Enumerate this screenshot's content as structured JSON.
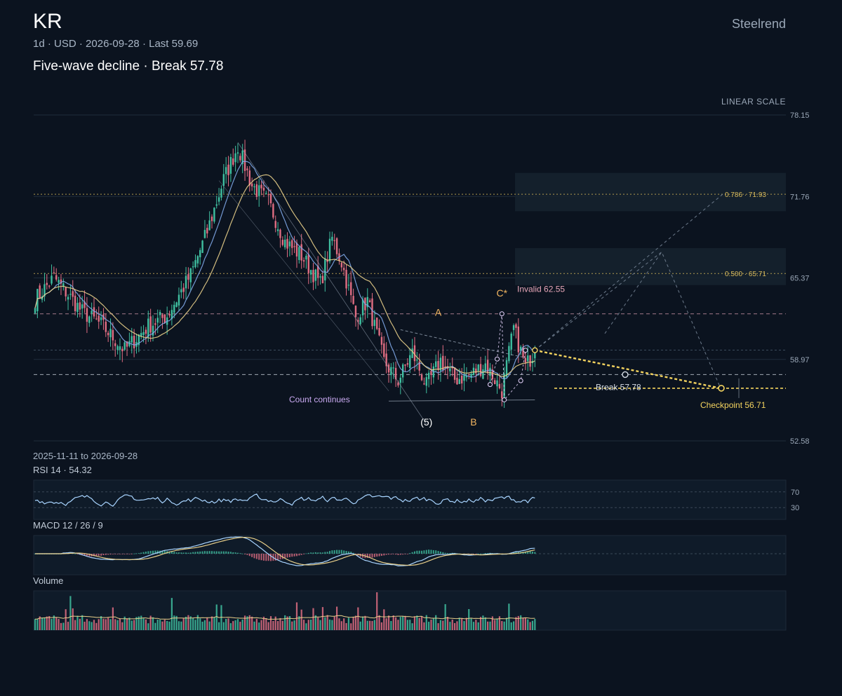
{
  "header": {
    "symbol": "KR",
    "interval": "1d",
    "currency": "USD",
    "date": "2026-09-28",
    "last_label": "Last 59.69",
    "headline": "Five-wave decline · Break 57.78",
    "brand": "Steelrend",
    "scale_label": "LINEAR SCALE",
    "date_range": "2025-11-11 to 2026-09-28"
  },
  "colors": {
    "background": "#0b131f",
    "up": "#3fbfa0",
    "down": "#e06d82",
    "ma_fast": "#7fa8e8",
    "ma_slow": "#e8cf8a",
    "fib": "#d7b95a",
    "invalid": "#e6a6b8",
    "wave_label": "#f2b560",
    "checkpoint": "#f3d35f"
  },
  "panels": {
    "rsi_label": "RSI 14 · 54.32",
    "macd_label": "MACD 12 / 26 / 9",
    "volume_label": "Volume"
  },
  "chart_data": {
    "type": "candlestick",
    "price_axis": {
      "min": 52.58,
      "max": 78.15,
      "ticks": [
        "78.15",
        "71.76",
        "65.37",
        "58.97",
        "52.58"
      ]
    },
    "anchors": [
      {
        "i": 0,
        "price": 63.7
      },
      {
        "i": 8,
        "price": 65.4
      },
      {
        "i": 20,
        "price": 62.7
      },
      {
        "i": 28,
        "price": 61.7
      },
      {
        "i": 38,
        "price": 59.7
      },
      {
        "i": 48,
        "price": 61.6
      },
      {
        "i": 56,
        "price": 62.4
      },
      {
        "i": 66,
        "price": 65.6
      },
      {
        "i": 73,
        "price": 69.0
      },
      {
        "i": 80,
        "price": 73.1
      },
      {
        "i": 86,
        "price": 75.7
      },
      {
        "i": 92,
        "price": 72.6
      },
      {
        "i": 99,
        "price": 71.3
      },
      {
        "i": 106,
        "price": 68.2
      },
      {
        "i": 113,
        "price": 67.1
      },
      {
        "i": 121,
        "price": 64.9
      },
      {
        "i": 126,
        "price": 68.5
      },
      {
        "i": 130,
        "price": 66.6
      },
      {
        "i": 136,
        "price": 62.3
      },
      {
        "i": 141,
        "price": 63.6
      },
      {
        "i": 148,
        "price": 58.8
      },
      {
        "i": 154,
        "price": 57.3
      },
      {
        "i": 160,
        "price": 59.5
      },
      {
        "i": 166,
        "price": 56.9
      },
      {
        "i": 172,
        "price": 58.9
      },
      {
        "i": 178,
        "price": 57.4
      },
      {
        "i": 184,
        "price": 57.7
      },
      {
        "i": 191,
        "price": 58.6
      },
      {
        "i": 198,
        "price": 56.5
      },
      {
        "i": 203,
        "price": 61.4
      },
      {
        "i": 208,
        "price": 58.4
      },
      {
        "i": 212,
        "price": 59.69
      }
    ],
    "levels": {
      "fib_0786": {
        "label": "0.786 · 71.93",
        "price": 71.93
      },
      "fib_0500": {
        "label": "0.500 · 65.71",
        "price": 65.71
      },
      "invalid": {
        "label": "Invalid 62.55",
        "price": 62.55
      },
      "pivot": {
        "price": 59.7
      },
      "break": {
        "label": "Break 57.78",
        "price": 57.78
      },
      "checkpoint": {
        "label": "Checkpoint 56.71",
        "price": 56.71
      }
    },
    "zones": [
      {
        "from": 70.6,
        "to": 73.6
      },
      {
        "from": 64.8,
        "to": 67.7
      }
    ],
    "wave_labels": [
      {
        "text": "(5)",
        "i": 166,
        "price": 53.8
      },
      {
        "text": "A",
        "i": 171,
        "price": 62.4
      },
      {
        "text": "B",
        "i": 186,
        "price": 53.8
      },
      {
        "text": "C*",
        "i": 198,
        "price": 63.9
      }
    ],
    "annotations": {
      "count_note": "Count continues"
    },
    "rsi": {
      "value": 54.32,
      "bands": [
        70,
        30
      ],
      "band_labels": [
        "70",
        "30"
      ]
    },
    "grid": true
  }
}
